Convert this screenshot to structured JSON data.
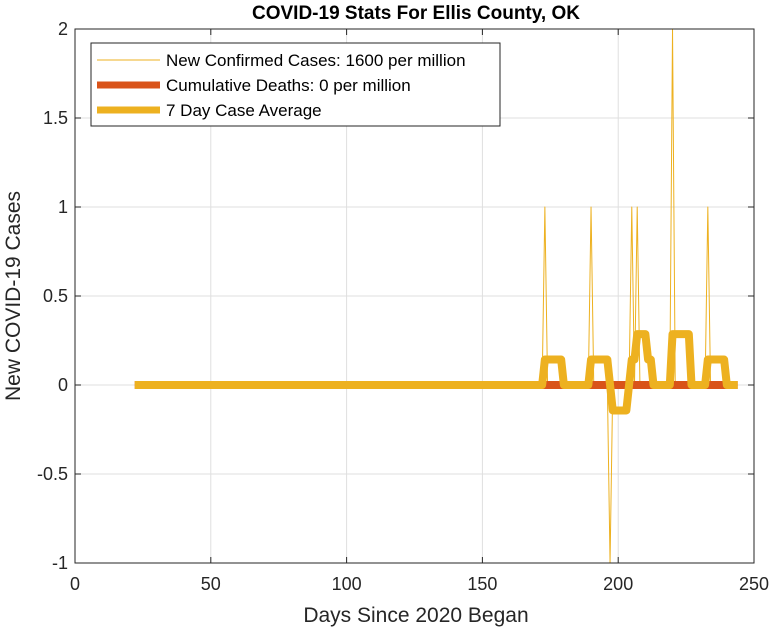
{
  "chart_data": {
    "type": "line",
    "title": "COVID-19 Stats For Ellis County, OK",
    "xlabel": "Days Since 2020 Began",
    "ylabel": "New COVID-19 Cases",
    "xlim": [
      0,
      250
    ],
    "ylim": [
      -1,
      2
    ],
    "xticks": [
      0,
      50,
      100,
      150,
      200,
      250
    ],
    "yticks": [
      -1,
      -0.5,
      0,
      0.5,
      1,
      1.5,
      2
    ],
    "xtick_labels": [
      "0",
      "50",
      "100",
      "150",
      "200",
      "250"
    ],
    "ytick_labels": [
      "-1",
      "-0.5",
      "0",
      "0.5",
      "1",
      "1.5",
      "2"
    ],
    "grid": true,
    "legend_position": "top-left",
    "series": [
      {
        "name": "New Confirmed Cases: 1600 per million",
        "color": "#EDB120",
        "style": "thin",
        "x": [
          22,
          172,
          173,
          174,
          189,
          190,
          191,
          196,
          197,
          198,
          204,
          205,
          206,
          207,
          208,
          219,
          220,
          221,
          232,
          233,
          234,
          244
        ],
        "y": [
          0,
          0,
          1,
          0,
          0,
          1,
          0,
          0,
          -1,
          0,
          0,
          1,
          0,
          1,
          0,
          0,
          2,
          0,
          0,
          1,
          0,
          0
        ]
      },
      {
        "name": "Cumulative Deaths: 0 per million",
        "color": "#D95319",
        "style": "thick",
        "x": [
          22,
          244
        ],
        "y": [
          0,
          0
        ]
      },
      {
        "name": "7 Day Case Average",
        "color": "#EDB120",
        "style": "thick",
        "x": [
          22,
          172,
          173,
          179,
          180,
          189,
          190,
          196,
          197,
          198,
          203,
          204,
          205,
          206,
          207,
          210,
          211,
          212,
          213,
          214,
          219,
          220,
          226,
          227,
          232,
          233,
          239,
          240,
          244
        ],
        "y": [
          0,
          0,
          0.1429,
          0.1429,
          0,
          0,
          0.1429,
          0.1429,
          0,
          -0.1429,
          -0.1429,
          0,
          0.1429,
          0.1429,
          0.2857,
          0.2857,
          0.1429,
          0.1429,
          0,
          0,
          0,
          0.2857,
          0.2857,
          0,
          0,
          0.1429,
          0.1429,
          0,
          0
        ]
      }
    ]
  }
}
